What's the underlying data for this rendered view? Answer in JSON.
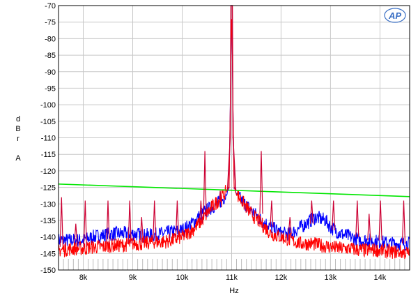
{
  "chart_data": {
    "type": "line",
    "title": "",
    "xlabel": "Hz",
    "ylabel_letters": [
      "d",
      "B",
      "r",
      "",
      "A"
    ],
    "xlim": [
      7500,
      14600
    ],
    "ylim": [
      -150,
      -70
    ],
    "x_ticks": [
      8000,
      9000,
      10000,
      11000,
      12000,
      13000,
      14000
    ],
    "x_tick_labels": [
      "8k",
      "9k",
      "10k",
      "11k",
      "12k",
      "13k",
      "14k"
    ],
    "y_ticks": [
      -70,
      -75,
      -80,
      -85,
      -90,
      -95,
      -100,
      -105,
      -110,
      -115,
      -120,
      -125,
      -130,
      -135,
      -140,
      -145,
      -150
    ],
    "y_tick_labels": [
      "-70",
      "-75",
      "-80",
      "-85",
      "-90",
      "-95",
      "-100",
      "-105",
      "-110",
      "-115",
      "-120",
      "-125",
      "-130",
      "-135",
      "-140",
      "-145",
      "-150"
    ],
    "grid": true,
    "legend": "none",
    "logo": "AP",
    "series": [
      {
        "color": "#0000ff",
        "x": [
          7500,
          7800,
          8000,
          8200,
          8400,
          8600,
          8800,
          9000,
          9200,
          9400,
          9600,
          9800,
          10000,
          10200,
          10400,
          10600,
          10800,
          10900,
          10950,
          11000,
          11050,
          11100,
          11200,
          11400,
          11600,
          11800,
          12000,
          12200,
          12400,
          12600,
          12700,
          12800,
          12900,
          13000,
          13200,
          13400,
          13600,
          13800,
          14000,
          14200,
          14400,
          14600
        ],
        "y": [
          -141,
          -141,
          -141,
          -140,
          -139.5,
          -139,
          -139,
          -139,
          -139.5,
          -139.5,
          -139,
          -138.5,
          -138,
          -136,
          -133,
          -131,
          -129,
          -127,
          -125,
          -70,
          -125,
          -127,
          -129,
          -132,
          -135,
          -137,
          -139,
          -139,
          -137,
          -135,
          -134,
          -134.5,
          -135,
          -137,
          -139,
          -140,
          -141,
          -141,
          -141.5,
          -142,
          -142,
          -142
        ]
      },
      {
        "color": "#ff0000",
        "x": [
          7500,
          7800,
          8000,
          8200,
          8400,
          8600,
          8800,
          9000,
          9200,
          9400,
          9600,
          9800,
          10000,
          10200,
          10400,
          10600,
          10800,
          10900,
          10950,
          11000,
          11050,
          11100,
          11200,
          11400,
          11600,
          11800,
          12000,
          12200,
          12400,
          12600,
          12800,
          13000,
          13200,
          13400,
          13600,
          13800,
          14000,
          14200,
          14400,
          14600
        ],
        "y": [
          -144,
          -143.5,
          -143.5,
          -143,
          -143,
          -142.5,
          -142.5,
          -142,
          -142,
          -141.5,
          -141.5,
          -141,
          -140,
          -138,
          -135,
          -131,
          -128,
          -126,
          -125,
          -70,
          -125,
          -127,
          -129,
          -133,
          -136,
          -139,
          -140,
          -141,
          -142,
          -142,
          -142.5,
          -143,
          -143.5,
          -143.5,
          -144,
          -144,
          -144,
          -144.5,
          -144.5,
          -145
        ]
      },
      {
        "color": "#00e600",
        "x": [
          7500,
          14600
        ],
        "y": [
          -124,
          -127.8
        ]
      }
    ],
    "spikes": [
      {
        "x": 7560,
        "top": -128,
        "base": -143
      },
      {
        "x": 7850,
        "top": -136,
        "base": -142
      },
      {
        "x": 8040,
        "top": -129,
        "base": -143
      },
      {
        "x": 8500,
        "top": -129,
        "base": -142
      },
      {
        "x": 8940,
        "top": -129,
        "base": -142
      },
      {
        "x": 9180,
        "top": -134,
        "base": -141
      },
      {
        "x": 9440,
        "top": -129,
        "base": -141
      },
      {
        "x": 9900,
        "top": -129,
        "base": -140
      },
      {
        "x": 10380,
        "top": -129,
        "base": -136
      },
      {
        "x": 10460,
        "top": -114,
        "base": -134
      },
      {
        "x": 10770,
        "top": -126,
        "base": -131
      },
      {
        "x": 11600,
        "top": -114,
        "base": -133
      },
      {
        "x": 11810,
        "top": -129,
        "base": -137
      },
      {
        "x": 12180,
        "top": -134,
        "base": -139
      },
      {
        "x": 12620,
        "top": -129,
        "base": -136
      },
      {
        "x": 13060,
        "top": -129,
        "base": -138
      },
      {
        "x": 13540,
        "top": -129,
        "base": -140
      },
      {
        "x": 13780,
        "top": -133,
        "base": -141
      },
      {
        "x": 14010,
        "top": -129,
        "base": -141
      },
      {
        "x": 14480,
        "top": -129,
        "base": -142
      }
    ]
  }
}
